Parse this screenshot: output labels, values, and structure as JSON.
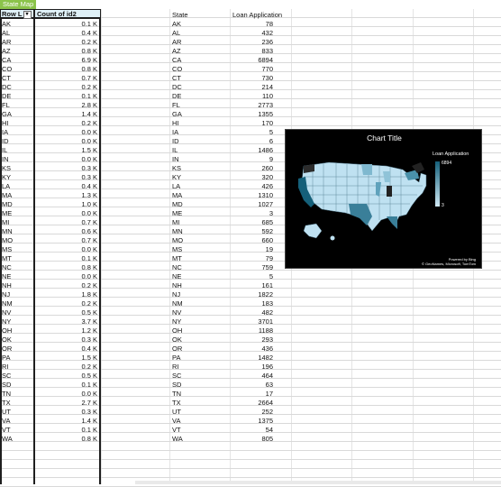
{
  "sheet_tab": "State Map",
  "pivot": {
    "col1_header": "Row L",
    "col2_header": "Count of id2",
    "rows": [
      [
        "AK",
        "0.1 K"
      ],
      [
        "AL",
        "0.4 K"
      ],
      [
        "AR",
        "0.2 K"
      ],
      [
        "AZ",
        "0.8 K"
      ],
      [
        "CA",
        "6.9 K"
      ],
      [
        "CO",
        "0.8 K"
      ],
      [
        "CT",
        "0.7 K"
      ],
      [
        "DC",
        "0.2 K"
      ],
      [
        "DE",
        "0.1 K"
      ],
      [
        "FL",
        "2.8 K"
      ],
      [
        "GA",
        "1.4 K"
      ],
      [
        "HI",
        "0.2 K"
      ],
      [
        "IA",
        "0.0 K"
      ],
      [
        "ID",
        "0.0 K"
      ],
      [
        "IL",
        "1.5 K"
      ],
      [
        "IN",
        "0.0 K"
      ],
      [
        "KS",
        "0.3 K"
      ],
      [
        "KY",
        "0.3 K"
      ],
      [
        "LA",
        "0.4 K"
      ],
      [
        "MA",
        "1.3 K"
      ],
      [
        "MD",
        "1.0 K"
      ],
      [
        "ME",
        "0.0 K"
      ],
      [
        "MI",
        "0.7 K"
      ],
      [
        "MN",
        "0.6 K"
      ],
      [
        "MO",
        "0.7 K"
      ],
      [
        "MS",
        "0.0 K"
      ],
      [
        "MT",
        "0.1 K"
      ],
      [
        "NC",
        "0.8 K"
      ],
      [
        "NE",
        "0.0 K"
      ],
      [
        "NH",
        "0.2 K"
      ],
      [
        "NJ",
        "1.8 K"
      ],
      [
        "NM",
        "0.2 K"
      ],
      [
        "NV",
        "0.5 K"
      ],
      [
        "NY",
        "3.7 K"
      ],
      [
        "OH",
        "1.2 K"
      ],
      [
        "OK",
        "0.3 K"
      ],
      [
        "OR",
        "0.4 K"
      ],
      [
        "PA",
        "1.5 K"
      ],
      [
        "RI",
        "0.2 K"
      ],
      [
        "SC",
        "0.5 K"
      ],
      [
        "SD",
        "0.1 K"
      ],
      [
        "TN",
        "0.0 K"
      ],
      [
        "TX",
        "2.7 K"
      ],
      [
        "UT",
        "0.3 K"
      ],
      [
        "VA",
        "1.4 K"
      ],
      [
        "VT",
        "0.1 K"
      ],
      [
        "WA",
        "0.8 K"
      ]
    ]
  },
  "table": {
    "col1_header": "State",
    "col2_header": "Loan Application",
    "rows": [
      [
        "AK",
        "78"
      ],
      [
        "AL",
        "432"
      ],
      [
        "AR",
        "236"
      ],
      [
        "AZ",
        "833"
      ],
      [
        "CA",
        "6894"
      ],
      [
        "CO",
        "770"
      ],
      [
        "CT",
        "730"
      ],
      [
        "DC",
        "214"
      ],
      [
        "DE",
        "110"
      ],
      [
        "FL",
        "2773"
      ],
      [
        "GA",
        "1355"
      ],
      [
        "HI",
        "170"
      ],
      [
        "IA",
        "5"
      ],
      [
        "ID",
        "6"
      ],
      [
        "IL",
        "1486"
      ],
      [
        "IN",
        "9"
      ],
      [
        "KS",
        "260"
      ],
      [
        "KY",
        "320"
      ],
      [
        "LA",
        "426"
      ],
      [
        "MA",
        "1310"
      ],
      [
        "MD",
        "1027"
      ],
      [
        "ME",
        "3"
      ],
      [
        "MI",
        "685"
      ],
      [
        "MN",
        "592"
      ],
      [
        "MO",
        "660"
      ],
      [
        "MS",
        "19"
      ],
      [
        "MT",
        "79"
      ],
      [
        "NC",
        "759"
      ],
      [
        "NE",
        "5"
      ],
      [
        "NH",
        "161"
      ],
      [
        "NJ",
        "1822"
      ],
      [
        "NM",
        "183"
      ],
      [
        "NV",
        "482"
      ],
      [
        "NY",
        "3701"
      ],
      [
        "OH",
        "1188"
      ],
      [
        "OK",
        "293"
      ],
      [
        "OR",
        "436"
      ],
      [
        "PA",
        "1482"
      ],
      [
        "RI",
        "196"
      ],
      [
        "SC",
        "464"
      ],
      [
        "SD",
        "63"
      ],
      [
        "TN",
        "17"
      ],
      [
        "TX",
        "2664"
      ],
      [
        "UT",
        "252"
      ],
      [
        "VA",
        "1375"
      ],
      [
        "VT",
        "54"
      ],
      [
        "WA",
        "805"
      ]
    ]
  },
  "map_chart": {
    "title": "Chart Title",
    "legend_title": "Loan Application",
    "legend_max": "6894",
    "legend_min": "3",
    "powered_by": "Powered by Bing",
    "copyright": "© GeoNames, Microsoft, TomTom",
    "colors": {
      "background": "#000000",
      "low": "#cfe9f5",
      "high": "#15607a",
      "max": "#3a3a3a"
    }
  }
}
